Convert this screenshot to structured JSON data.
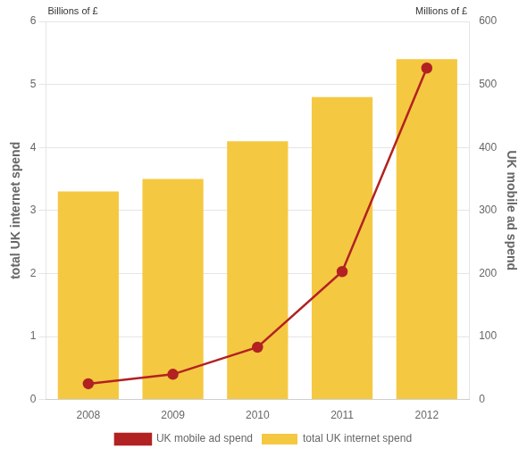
{
  "chart_data": {
    "type": "bar",
    "categories": [
      "2008",
      "2009",
      "2010",
      "2011",
      "2012"
    ],
    "series": [
      {
        "name": "total UK internet spend",
        "type": "bar",
        "color": "#F5C842",
        "values": [
          3.3,
          3.5,
          4.1,
          4.8,
          5.4
        ]
      },
      {
        "name": "UK mobile ad spend",
        "type": "line",
        "color": "#B22222",
        "marker": "circle",
        "axis": "y2",
        "values": [
          25,
          40,
          83,
          203,
          526
        ]
      }
    ],
    "ylabel": "total UK internet spend",
    "y2label": "UK mobile ad spend",
    "annotations": [
      "Billions of £",
      "Millions of £"
    ],
    "ylim": [
      0,
      6
    ],
    "yticks": [
      0,
      1,
      2,
      3,
      4,
      5,
      6
    ],
    "y2lim": [
      0,
      600
    ],
    "y2ticks": [
      0,
      100,
      200,
      300,
      400,
      500,
      600
    ],
    "grid": true,
    "legend": "bottom"
  }
}
